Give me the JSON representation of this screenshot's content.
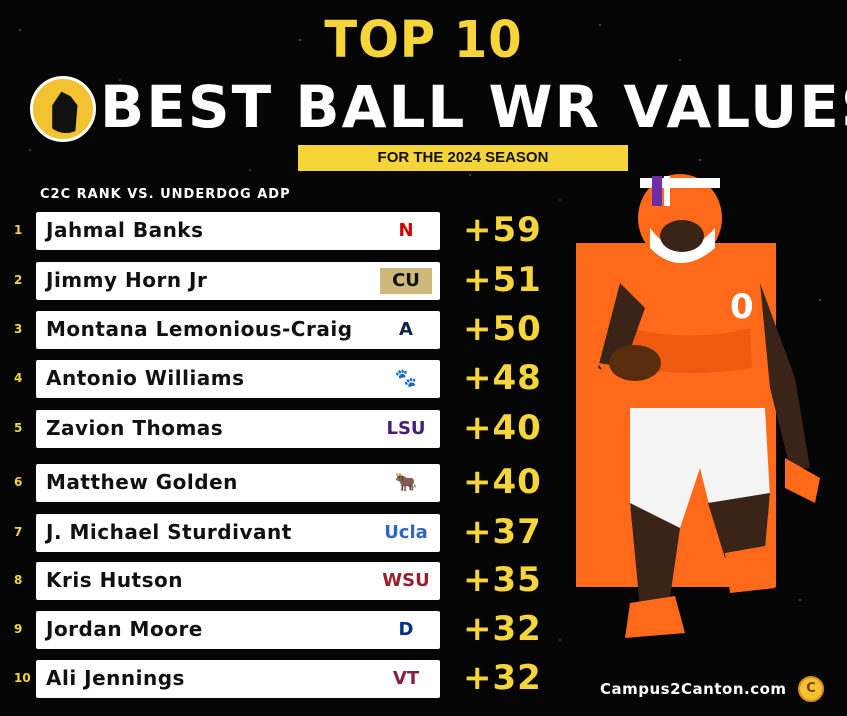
{
  "header": {
    "top_line": "TOP 10",
    "main_title": "BEST BALL WR VALUES",
    "season_label": "FOR THE 2024 SEASON"
  },
  "subheading": "C2C RANK VS. UNDERDOG ADP",
  "rows": [
    {
      "rank": "1",
      "name": "Jahmal Banks",
      "value": "+59",
      "badge": "N",
      "badge_color": "#d00000",
      "badge_bg": "#ffffff"
    },
    {
      "rank": "2",
      "name": "Jimmy Horn Jr",
      "value": "+51",
      "badge": "CU",
      "badge_color": "#111111",
      "badge_bg": "#cfb87c"
    },
    {
      "rank": "3",
      "name": "Montana Lemonious-Craig",
      "value": "+50",
      "badge": "A",
      "badge_color": "#0c234b",
      "badge_bg": "#ffffff"
    },
    {
      "rank": "4",
      "name": "Antonio Williams",
      "value": "+48",
      "badge": "🐾",
      "badge_color": "#f56600",
      "badge_bg": "#ffffff"
    },
    {
      "rank": "5",
      "name": "Zavion Thomas",
      "value": "+40",
      "badge": "LSU",
      "badge_color": "#461d7c",
      "badge_bg": "#ffffff"
    },
    {
      "rank": "6",
      "name": "Matthew Golden",
      "value": "+40",
      "badge": "🐂",
      "badge_color": "#bf5700",
      "badge_bg": "#ffffff"
    },
    {
      "rank": "7",
      "name": "J. Michael Sturdivant",
      "value": "+37",
      "badge": "Ucla",
      "badge_color": "#2d68c4",
      "badge_bg": "#ffffff"
    },
    {
      "rank": "8",
      "name": "Kris Hutson",
      "value": "+35",
      "badge": "WSU",
      "badge_color": "#981e32",
      "badge_bg": "#ffffff"
    },
    {
      "rank": "9",
      "name": "Jordan Moore",
      "value": "+32",
      "badge": "D",
      "badge_color": "#003087",
      "badge_bg": "#ffffff"
    },
    {
      "rank": "10",
      "name": "Ali Jennings",
      "value": "+32",
      "badge": "VT",
      "badge_color": "#861f41",
      "badge_bg": "#ffffff"
    }
  ],
  "footer": {
    "site": "Campus2Canton.com"
  },
  "colors": {
    "accent_yellow": "#f6d53a",
    "player_bg_orange": "#ff6a1a",
    "background": "#050505"
  }
}
